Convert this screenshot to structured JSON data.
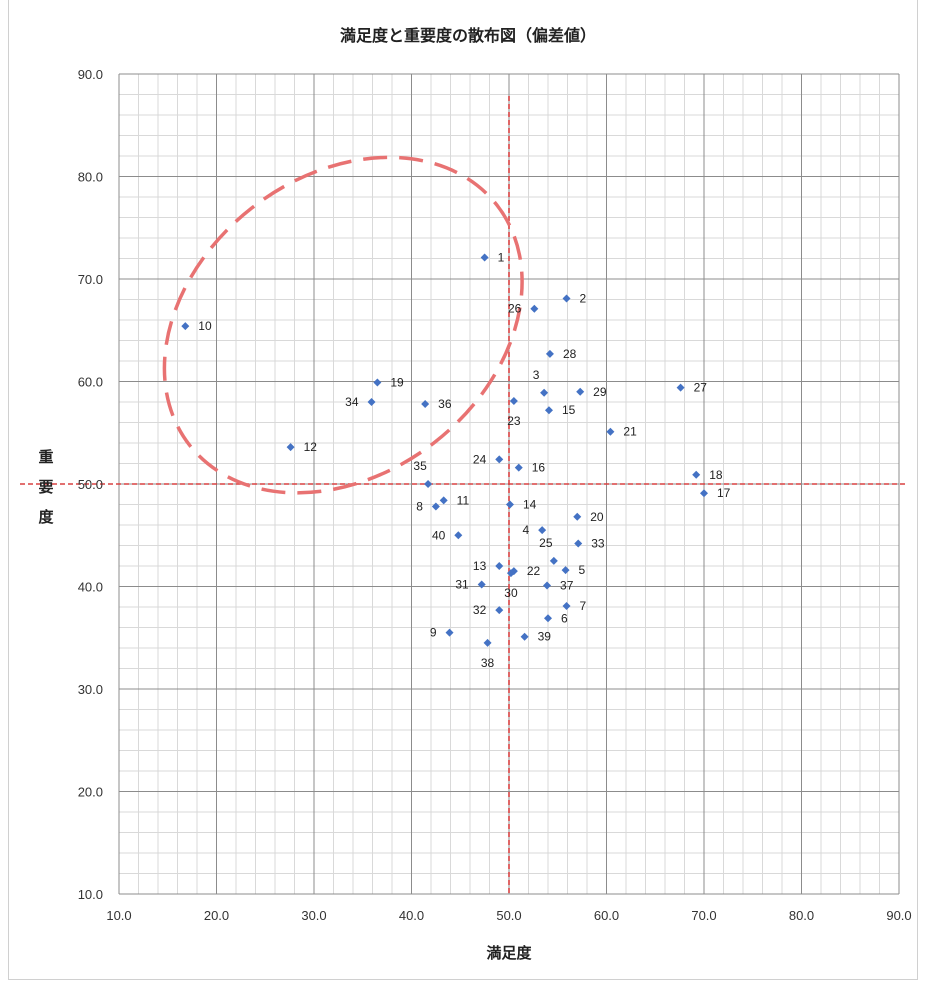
{
  "chart_data": {
    "type": "scatter",
    "title": "満足度と重要度の散布図（偏差値）",
    "xlabel": "満足度",
    "ylabel": "重要度",
    "xlim": [
      10,
      90
    ],
    "ylim": [
      10,
      90
    ],
    "x_ticks": [
      "10.0",
      "20.0",
      "30.0",
      "40.0",
      "50.0",
      "60.0",
      "70.0",
      "80.0",
      "90.0"
    ],
    "y_ticks": [
      "10.0",
      "20.0",
      "30.0",
      "40.0",
      "50.0",
      "60.0",
      "70.0",
      "80.0",
      "90.0"
    ],
    "grid": true,
    "reference_lines": {
      "x": 50,
      "y": 50,
      "color": "#d94040"
    },
    "marker_color": "#4472c4",
    "highlight_color": "#e87272",
    "highlight_ellipse": {
      "cx": 33,
      "cy": 65.5,
      "rx": 20,
      "ry": 14.5,
      "rotation_deg": -38
    },
    "points": [
      {
        "label": "1",
        "x": 47.5,
        "y": 72.1,
        "pos": "r"
      },
      {
        "label": "2",
        "x": 55.9,
        "y": 68.1,
        "pos": "r"
      },
      {
        "label": "3",
        "x": 53.6,
        "y": 58.9,
        "pos": "a"
      },
      {
        "label": "4",
        "x": 53.4,
        "y": 45.5,
        "pos": "l"
      },
      {
        "label": "5",
        "x": 55.8,
        "y": 41.6,
        "pos": "r"
      },
      {
        "label": "6",
        "x": 54.0,
        "y": 36.9,
        "pos": "r"
      },
      {
        "label": "7",
        "x": 55.9,
        "y": 38.1,
        "pos": "r"
      },
      {
        "label": "8",
        "x": 42.5,
        "y": 47.8,
        "pos": "l"
      },
      {
        "label": "9",
        "x": 43.9,
        "y": 35.5,
        "pos": "l"
      },
      {
        "label": "10",
        "x": 16.8,
        "y": 65.4,
        "pos": "r"
      },
      {
        "label": "11",
        "x": 43.3,
        "y": 48.4,
        "pos": "r"
      },
      {
        "label": "12",
        "x": 27.6,
        "y": 53.6,
        "pos": "r"
      },
      {
        "label": "13",
        "x": 49.0,
        "y": 42.0,
        "pos": "l"
      },
      {
        "label": "14",
        "x": 50.1,
        "y": 48.0,
        "pos": "r"
      },
      {
        "label": "15",
        "x": 54.1,
        "y": 57.2,
        "pos": "r"
      },
      {
        "label": "16",
        "x": 51.0,
        "y": 51.6,
        "pos": "r"
      },
      {
        "label": "17",
        "x": 70.0,
        "y": 49.1,
        "pos": "r"
      },
      {
        "label": "18",
        "x": 69.2,
        "y": 50.9,
        "pos": "r"
      },
      {
        "label": "19",
        "x": 36.5,
        "y": 59.9,
        "pos": "r"
      },
      {
        "label": "20",
        "x": 57.0,
        "y": 46.8,
        "pos": "r"
      },
      {
        "label": "21",
        "x": 60.4,
        "y": 55.1,
        "pos": "r"
      },
      {
        "label": "22",
        "x": 50.5,
        "y": 41.5,
        "pos": "r"
      },
      {
        "label": "23",
        "x": 50.5,
        "y": 58.1,
        "pos": "b"
      },
      {
        "label": "24",
        "x": 49.0,
        "y": 52.4,
        "pos": "l"
      },
      {
        "label": "25",
        "x": 54.6,
        "y": 42.5,
        "pos": "a"
      },
      {
        "label": "26",
        "x": 52.6,
        "y": 67.1,
        "pos": "l"
      },
      {
        "label": "27",
        "x": 67.6,
        "y": 59.4,
        "pos": "r"
      },
      {
        "label": "28",
        "x": 54.2,
        "y": 62.7,
        "pos": "r"
      },
      {
        "label": "29",
        "x": 57.3,
        "y": 59.0,
        "pos": "r"
      },
      {
        "label": "30",
        "x": 50.2,
        "y": 41.3,
        "pos": "b"
      },
      {
        "label": "31",
        "x": 47.2,
        "y": 40.2,
        "pos": "l"
      },
      {
        "label": "32",
        "x": 49.0,
        "y": 37.7,
        "pos": "l"
      },
      {
        "label": "33",
        "x": 57.1,
        "y": 44.2,
        "pos": "r"
      },
      {
        "label": "34",
        "x": 35.9,
        "y": 58.0,
        "pos": "l"
      },
      {
        "label": "35",
        "x": 41.7,
        "y": 50.0,
        "pos": "a"
      },
      {
        "label": "36",
        "x": 41.4,
        "y": 57.8,
        "pos": "r"
      },
      {
        "label": "37",
        "x": 53.9,
        "y": 40.1,
        "pos": "r"
      },
      {
        "label": "38",
        "x": 47.8,
        "y": 34.5,
        "pos": "b"
      },
      {
        "label": "39",
        "x": 51.6,
        "y": 35.1,
        "pos": "r"
      },
      {
        "label": "40",
        "x": 44.8,
        "y": 45.0,
        "pos": "l"
      }
    ]
  }
}
